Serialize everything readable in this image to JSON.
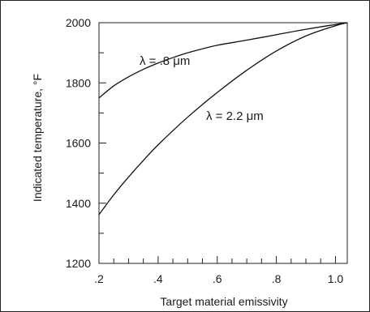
{
  "chart_data": {
    "type": "line",
    "title": "",
    "xlabel": "Target material emissivity",
    "ylabel": "Indicated temperature, °F",
    "xlim": [
      0.2,
      1.04
    ],
    "ylim": [
      1200,
      2000
    ],
    "xticks": [
      0.2,
      0.4,
      0.6,
      0.8,
      1.0
    ],
    "xtick_labels": [
      ".2",
      ".4",
      ".6",
      ".8",
      "1.0"
    ],
    "yticks": [
      1200,
      1400,
      1600,
      1800,
      2000
    ],
    "ytick_labels": [
      "1200",
      "1400",
      "1600",
      "1800",
      "2000"
    ],
    "grid": false,
    "legend": "none",
    "series": [
      {
        "label": "λ = .8 μm",
        "x": [
          0.2,
          0.25,
          0.3,
          0.35,
          0.4,
          0.45,
          0.5,
          0.55,
          0.6,
          0.7,
          0.8,
          0.9,
          1.0,
          1.04
        ],
        "y": [
          1750,
          1790,
          1820,
          1845,
          1866,
          1884,
          1900,
          1913,
          1925,
          1942,
          1960,
          1978,
          1994,
          2000
        ]
      },
      {
        "label": "λ = 2.2 μm",
        "x": [
          0.2,
          0.25,
          0.3,
          0.35,
          0.4,
          0.5,
          0.6,
          0.7,
          0.8,
          0.9,
          1.0,
          1.04
        ],
        "y": [
          1362,
          1428,
          1487,
          1542,
          1594,
          1686,
          1768,
          1842,
          1906,
          1956,
          1990,
          2000
        ]
      }
    ]
  }
}
